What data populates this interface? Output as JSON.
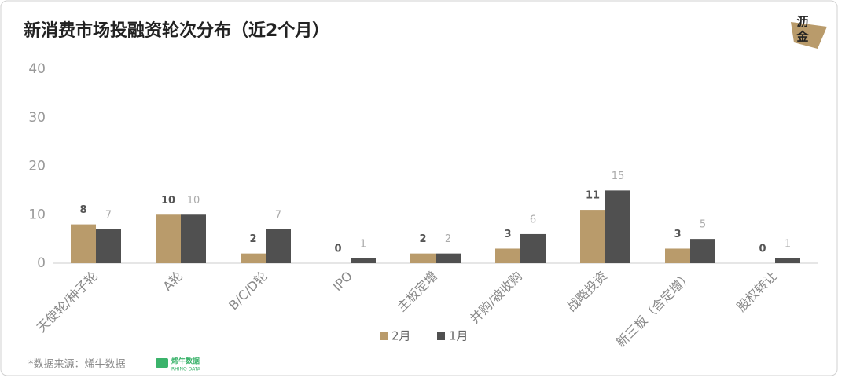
{
  "chart_data": {
    "type": "bar",
    "title": "新消费市场投融资轮次分布（近2个月）",
    "categories": [
      "天使轮/种子轮",
      "A轮",
      "B/C/D轮",
      "IPO",
      "主板定增",
      "并购/被收购",
      "战略投资",
      "新三板（含定增）",
      "股权转让"
    ],
    "series": [
      {
        "name": "2月",
        "color": "#b99b6b",
        "label_color": "#555555",
        "values": [
          8,
          10,
          2,
          0,
          2,
          3,
          11,
          3,
          0
        ]
      },
      {
        "name": "1月",
        "color": "#505050",
        "label_color": "#aaaaaa",
        "values": [
          7,
          10,
          7,
          1,
          2,
          6,
          15,
          5,
          1
        ]
      }
    ],
    "ylim": [
      0,
      40
    ],
    "yticks": [
      0,
      10,
      20,
      30,
      40
    ],
    "grid": false,
    "legend": "bottom"
  },
  "footer": {
    "source": "*数据来源：烯牛数据",
    "brand": "烯牛数据",
    "brand_en": "RHINO DATA"
  },
  "logo": {
    "lines": [
      "沥",
      "金"
    ]
  }
}
